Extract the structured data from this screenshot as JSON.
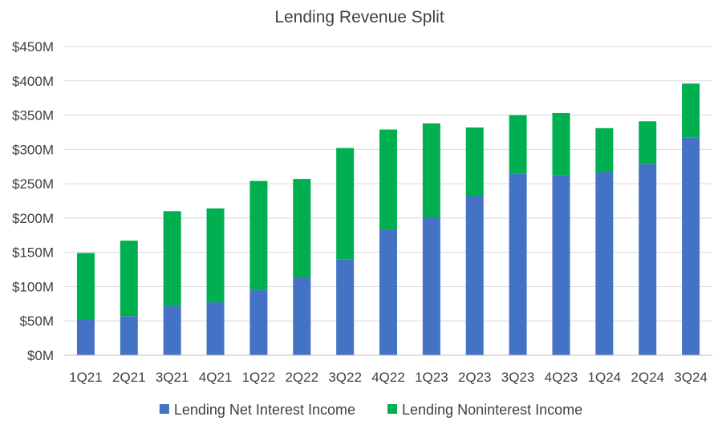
{
  "chart_data": {
    "type": "bar",
    "stacked": true,
    "title": "Lending Revenue Split",
    "xlabel": "",
    "ylabel": "",
    "categories": [
      "1Q21",
      "2Q21",
      "3Q21",
      "4Q21",
      "1Q22",
      "2Q22",
      "3Q22",
      "4Q22",
      "1Q23",
      "2Q23",
      "3Q23",
      "4Q23",
      "1Q24",
      "2Q24",
      "3Q24"
    ],
    "series": [
      {
        "name": "Lending Net Interest Income",
        "color": "#4472c4",
        "values": [
          52,
          57,
          72,
          77,
          95,
          114,
          140,
          183,
          201,
          232,
          265,
          262,
          267,
          279,
          317
        ]
      },
      {
        "name": "Lending Noninterest Income",
        "color": "#00b050",
        "values": [
          97,
          110,
          138,
          137,
          159,
          143,
          162,
          146,
          137,
          100,
          85,
          91,
          64,
          62,
          79
        ]
      }
    ],
    "ylim": [
      0,
      450
    ],
    "y_ticks": [
      0,
      50,
      100,
      150,
      200,
      250,
      300,
      350,
      400,
      450
    ],
    "y_tick_labels": [
      "$0M",
      "$50M",
      "$100M",
      "$150M",
      "$200M",
      "$250M",
      "$300M",
      "$350M",
      "$400M",
      "$450M"
    ],
    "grid": true,
    "legend_position": "bottom"
  }
}
